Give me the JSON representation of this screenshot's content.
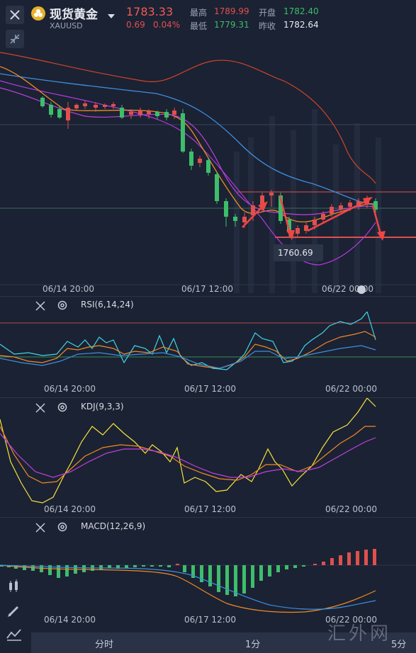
{
  "header": {
    "close_icon": "close-icon",
    "symbol_name": "现货黄金",
    "symbol_code": "XAUUSD",
    "dropdown_icon": "caret-down-icon",
    "price": "1783.33",
    "change": "0.69",
    "change_pct": "0.04%",
    "high_label": "最高",
    "high_value": "1789.99",
    "low_label": "最低",
    "low_value": "1779.31",
    "open_label": "开盘",
    "open_value": "1782.40",
    "prev_close_label": "昨收",
    "prev_close_value": "1782.64"
  },
  "colors": {
    "up": "#3ebd6b",
    "down": "#e0504d",
    "price_red": "#f05a57",
    "background": "#1b2233",
    "ma_orange": "#f08a24",
    "ma_purple": "#c040e0",
    "ma_blue": "#3d8fe0",
    "ma_yellow": "#f5e43c",
    "cyan": "#3fd6e6"
  },
  "main_chart": {
    "time_labels": [
      "06/14 20:00",
      "06/17 12:00",
      "06/22 00:00"
    ],
    "low_marker_label": "1760.69"
  },
  "rsi": {
    "label": "RSI(6,14,24)",
    "time_labels": [
      "06/14 20:00",
      "06/17 12:00",
      "06/22 00:00"
    ]
  },
  "kdj": {
    "label": "KDJ(9,3,3)",
    "time_labels": [
      "06/14 20:00",
      "06/17 12:00",
      "06/22 00:00"
    ]
  },
  "macd": {
    "label": "MACD(12,26,9)",
    "time_labels": [
      "06/14 20:00",
      "06/17 12:00",
      "06/22 00:00"
    ]
  },
  "bottom_tabs": [
    "分时",
    "1分",
    "5分"
  ],
  "watermark": "汇外网"
}
